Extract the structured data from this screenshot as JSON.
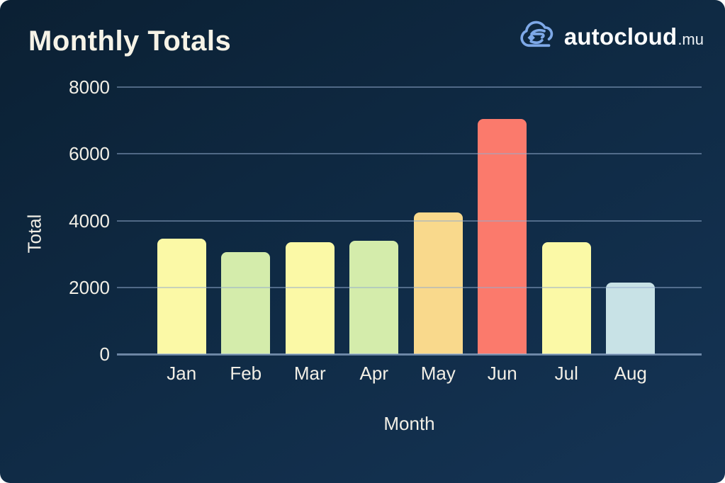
{
  "header": {
    "title": "Monthly Totals",
    "logo": {
      "brand": "autocloud",
      "tld": ".mu",
      "icon": "cloud-car-logo",
      "icon_color": "#7ea9e8"
    }
  },
  "chart_data": {
    "type": "bar",
    "title": "Monthly Totals",
    "categories": [
      "Jan",
      "Feb",
      "Mar",
      "Apr",
      "May",
      "Jun",
      "Jul",
      "Aug"
    ],
    "values": [
      3450,
      3050,
      3350,
      3400,
      4250,
      7050,
      3350,
      2150
    ],
    "bar_colors": [
      "#fbf9a6",
      "#d4ecab",
      "#fbf9a6",
      "#d4ecab",
      "#f9d98c",
      "#fb7a6c",
      "#fbf9a6",
      "#c8e2e6"
    ],
    "xlabel": "Month",
    "ylabel": "Total",
    "ylim": [
      0,
      8000
    ],
    "yticks": [
      0,
      2000,
      4000,
      6000,
      8000
    ],
    "grid": true,
    "legend": false,
    "background": "#0f2a44",
    "text_color": "#f2efe6",
    "gridline_color": "rgba(148,172,205,0.5)"
  }
}
